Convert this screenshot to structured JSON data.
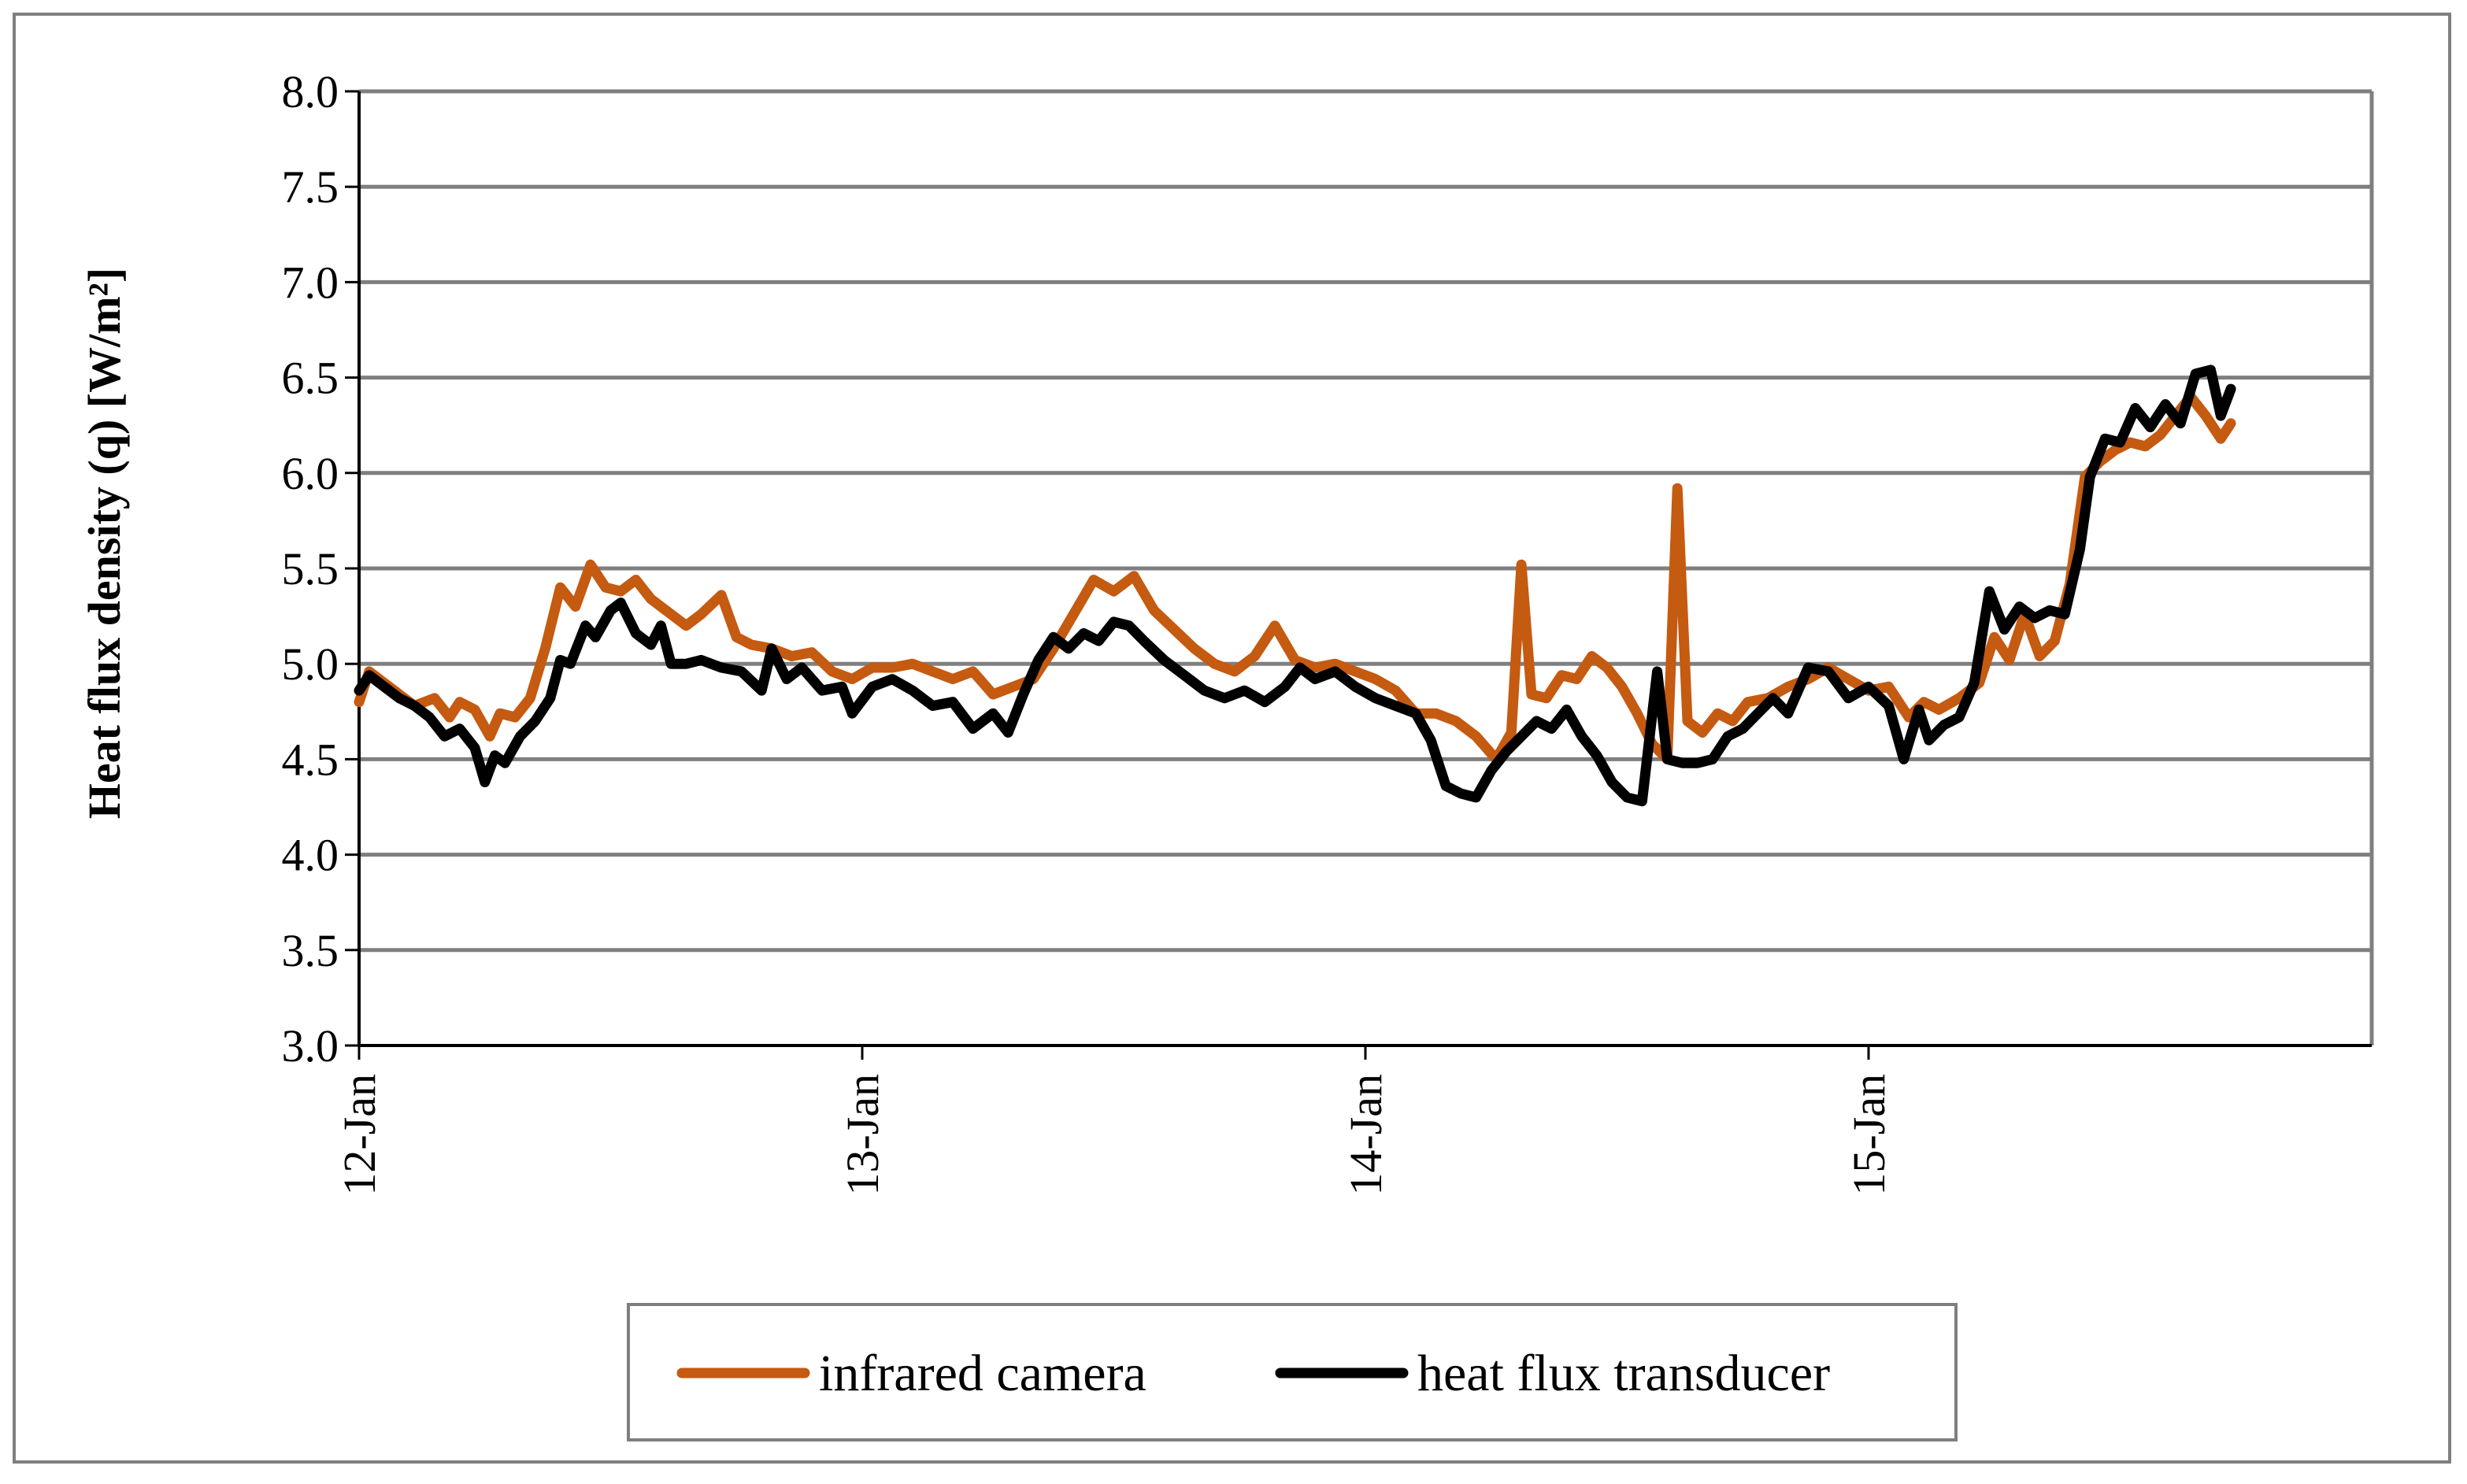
{
  "chart_data": {
    "type": "line",
    "title": "",
    "xlabel": "",
    "ylabel": "Heat flux density   (q) [W/m²]",
    "ylim": [
      3.0,
      8.0
    ],
    "yticks": [
      "3.0",
      "3.5",
      "4.0",
      "4.5",
      "5.0",
      "5.5",
      "6.0",
      "6.5",
      "7.0",
      "7.5",
      "8.0"
    ],
    "xlim": [
      0,
      4
    ],
    "xticks": [
      {
        "label": "12-Jan",
        "day": 0
      },
      {
        "label": "13-Jan",
        "day": 1
      },
      {
        "label": "14-Jan",
        "day": 2
      },
      {
        "label": "15-Jan",
        "day": 3
      }
    ],
    "grid": true,
    "legend_position": "bottom",
    "series": [
      {
        "name": "infrared camera",
        "color": "#C55A11",
        "points": [
          [
            0.0,
            4.8
          ],
          [
            0.02,
            4.96
          ],
          [
            0.05,
            4.9
          ],
          [
            0.08,
            4.84
          ],
          [
            0.11,
            4.78
          ],
          [
            0.15,
            4.82
          ],
          [
            0.18,
            4.72
          ],
          [
            0.2,
            4.8
          ],
          [
            0.23,
            4.76
          ],
          [
            0.26,
            4.62
          ],
          [
            0.28,
            4.74
          ],
          [
            0.31,
            4.72
          ],
          [
            0.34,
            4.82
          ],
          [
            0.37,
            5.08
          ],
          [
            0.4,
            5.4
          ],
          [
            0.43,
            5.3
          ],
          [
            0.46,
            5.52
          ],
          [
            0.49,
            5.4
          ],
          [
            0.52,
            5.38
          ],
          [
            0.55,
            5.44
          ],
          [
            0.58,
            5.34
          ],
          [
            0.62,
            5.26
          ],
          [
            0.65,
            5.2
          ],
          [
            0.68,
            5.26
          ],
          [
            0.72,
            5.36
          ],
          [
            0.75,
            5.14
          ],
          [
            0.78,
            5.1
          ],
          [
            0.82,
            5.08
          ],
          [
            0.86,
            5.04
          ],
          [
            0.9,
            5.06
          ],
          [
            0.94,
            4.96
          ],
          [
            0.98,
            4.92
          ],
          [
            1.02,
            4.98
          ],
          [
            1.06,
            4.98
          ],
          [
            1.1,
            5.0
          ],
          [
            1.14,
            4.96
          ],
          [
            1.18,
            4.92
          ],
          [
            1.22,
            4.96
          ],
          [
            1.26,
            4.84
          ],
          [
            1.3,
            4.88
          ],
          [
            1.34,
            4.92
          ],
          [
            1.38,
            5.08
          ],
          [
            1.42,
            5.26
          ],
          [
            1.46,
            5.44
          ],
          [
            1.5,
            5.38
          ],
          [
            1.54,
            5.46
          ],
          [
            1.58,
            5.28
          ],
          [
            1.62,
            5.18
          ],
          [
            1.66,
            5.08
          ],
          [
            1.7,
            5.0
          ],
          [
            1.74,
            4.96
          ],
          [
            1.78,
            5.04
          ],
          [
            1.82,
            5.2
          ],
          [
            1.86,
            5.02
          ],
          [
            1.9,
            4.98
          ],
          [
            1.94,
            5.0
          ],
          [
            1.98,
            4.96
          ],
          [
            2.02,
            4.92
          ],
          [
            2.06,
            4.86
          ],
          [
            2.1,
            4.74
          ],
          [
            2.14,
            4.74
          ],
          [
            2.18,
            4.7
          ],
          [
            2.22,
            4.62
          ],
          [
            2.26,
            4.5
          ],
          [
            2.29,
            4.64
          ],
          [
            2.31,
            5.52
          ],
          [
            2.33,
            4.84
          ],
          [
            2.36,
            4.82
          ],
          [
            2.39,
            4.94
          ],
          [
            2.42,
            4.92
          ],
          [
            2.45,
            5.04
          ],
          [
            2.48,
            4.98
          ],
          [
            2.51,
            4.88
          ],
          [
            2.54,
            4.74
          ],
          [
            2.57,
            4.58
          ],
          [
            2.6,
            4.5
          ],
          [
            2.62,
            5.92
          ],
          [
            2.64,
            4.7
          ],
          [
            2.67,
            4.64
          ],
          [
            2.7,
            4.74
          ],
          [
            2.73,
            4.7
          ],
          [
            2.76,
            4.8
          ],
          [
            2.8,
            4.82
          ],
          [
            2.84,
            4.88
          ],
          [
            2.88,
            4.92
          ],
          [
            2.92,
            4.98
          ],
          [
            2.96,
            4.92
          ],
          [
            3.0,
            4.86
          ],
          [
            3.04,
            4.88
          ],
          [
            3.08,
            4.72
          ],
          [
            3.11,
            4.8
          ],
          [
            3.14,
            4.76
          ],
          [
            3.18,
            4.82
          ],
          [
            3.22,
            4.9
          ],
          [
            3.25,
            5.14
          ],
          [
            3.28,
            5.02
          ],
          [
            3.31,
            5.26
          ],
          [
            3.34,
            5.04
          ],
          [
            3.37,
            5.12
          ],
          [
            3.4,
            5.42
          ],
          [
            3.43,
            5.98
          ],
          [
            3.46,
            6.06
          ],
          [
            3.49,
            6.12
          ],
          [
            3.52,
            6.16
          ],
          [
            3.55,
            6.14
          ],
          [
            3.58,
            6.2
          ],
          [
            3.61,
            6.3
          ],
          [
            3.64,
            6.4
          ],
          [
            3.67,
            6.3
          ],
          [
            3.7,
            6.18
          ],
          [
            3.72,
            6.26
          ]
        ]
      },
      {
        "name": "heat flux transducer",
        "color": "#000000",
        "points": [
          [
            0.0,
            4.86
          ],
          [
            0.02,
            4.94
          ],
          [
            0.05,
            4.88
          ],
          [
            0.08,
            4.82
          ],
          [
            0.11,
            4.78
          ],
          [
            0.14,
            4.72
          ],
          [
            0.17,
            4.62
          ],
          [
            0.2,
            4.66
          ],
          [
            0.23,
            4.56
          ],
          [
            0.25,
            4.38
          ],
          [
            0.27,
            4.52
          ],
          [
            0.29,
            4.48
          ],
          [
            0.32,
            4.62
          ],
          [
            0.35,
            4.7
          ],
          [
            0.38,
            4.82
          ],
          [
            0.4,
            5.02
          ],
          [
            0.42,
            5.0
          ],
          [
            0.45,
            5.2
          ],
          [
            0.47,
            5.14
          ],
          [
            0.5,
            5.28
          ],
          [
            0.52,
            5.32
          ],
          [
            0.55,
            5.16
          ],
          [
            0.58,
            5.1
          ],
          [
            0.6,
            5.2
          ],
          [
            0.62,
            5.0
          ],
          [
            0.65,
            5.0
          ],
          [
            0.68,
            5.02
          ],
          [
            0.72,
            4.98
          ],
          [
            0.76,
            4.96
          ],
          [
            0.8,
            4.86
          ],
          [
            0.82,
            5.08
          ],
          [
            0.85,
            4.92
          ],
          [
            0.88,
            4.98
          ],
          [
            0.92,
            4.86
          ],
          [
            0.96,
            4.88
          ],
          [
            0.98,
            4.74
          ],
          [
            1.02,
            4.88
          ],
          [
            1.06,
            4.92
          ],
          [
            1.1,
            4.86
          ],
          [
            1.14,
            4.78
          ],
          [
            1.18,
            4.8
          ],
          [
            1.22,
            4.66
          ],
          [
            1.26,
            4.74
          ],
          [
            1.29,
            4.64
          ],
          [
            1.32,
            4.84
          ],
          [
            1.35,
            5.02
          ],
          [
            1.38,
            5.14
          ],
          [
            1.41,
            5.08
          ],
          [
            1.44,
            5.16
          ],
          [
            1.47,
            5.12
          ],
          [
            1.5,
            5.22
          ],
          [
            1.53,
            5.2
          ],
          [
            1.56,
            5.12
          ],
          [
            1.6,
            5.02
          ],
          [
            1.64,
            4.94
          ],
          [
            1.68,
            4.86
          ],
          [
            1.72,
            4.82
          ],
          [
            1.76,
            4.86
          ],
          [
            1.8,
            4.8
          ],
          [
            1.84,
            4.88
          ],
          [
            1.87,
            4.98
          ],
          [
            1.9,
            4.92
          ],
          [
            1.94,
            4.96
          ],
          [
            1.98,
            4.88
          ],
          [
            2.02,
            4.82
          ],
          [
            2.06,
            4.78
          ],
          [
            2.1,
            4.74
          ],
          [
            2.13,
            4.6
          ],
          [
            2.16,
            4.36
          ],
          [
            2.19,
            4.32
          ],
          [
            2.22,
            4.3
          ],
          [
            2.25,
            4.44
          ],
          [
            2.28,
            4.54
          ],
          [
            2.31,
            4.62
          ],
          [
            2.34,
            4.7
          ],
          [
            2.37,
            4.66
          ],
          [
            2.4,
            4.76
          ],
          [
            2.43,
            4.62
          ],
          [
            2.46,
            4.52
          ],
          [
            2.49,
            4.38
          ],
          [
            2.52,
            4.3
          ],
          [
            2.55,
            4.28
          ],
          [
            2.58,
            4.96
          ],
          [
            2.6,
            4.5
          ],
          [
            2.63,
            4.48
          ],
          [
            2.66,
            4.48
          ],
          [
            2.69,
            4.5
          ],
          [
            2.72,
            4.62
          ],
          [
            2.75,
            4.66
          ],
          [
            2.78,
            4.74
          ],
          [
            2.81,
            4.82
          ],
          [
            2.84,
            4.74
          ],
          [
            2.88,
            4.98
          ],
          [
            2.92,
            4.96
          ],
          [
            2.96,
            4.82
          ],
          [
            3.0,
            4.88
          ],
          [
            3.04,
            4.78
          ],
          [
            3.07,
            4.5
          ],
          [
            3.1,
            4.76
          ],
          [
            3.12,
            4.6
          ],
          [
            3.15,
            4.68
          ],
          [
            3.18,
            4.72
          ],
          [
            3.21,
            4.9
          ],
          [
            3.24,
            5.38
          ],
          [
            3.27,
            5.18
          ],
          [
            3.3,
            5.3
          ],
          [
            3.33,
            5.24
          ],
          [
            3.36,
            5.28
          ],
          [
            3.39,
            5.26
          ],
          [
            3.42,
            5.6
          ],
          [
            3.44,
            5.98
          ],
          [
            3.47,
            6.18
          ],
          [
            3.5,
            6.16
          ],
          [
            3.53,
            6.34
          ],
          [
            3.56,
            6.24
          ],
          [
            3.59,
            6.36
          ],
          [
            3.62,
            6.26
          ],
          [
            3.65,
            6.52
          ],
          [
            3.68,
            6.54
          ],
          [
            3.7,
            6.3
          ],
          [
            3.72,
            6.44
          ]
        ]
      }
    ]
  }
}
